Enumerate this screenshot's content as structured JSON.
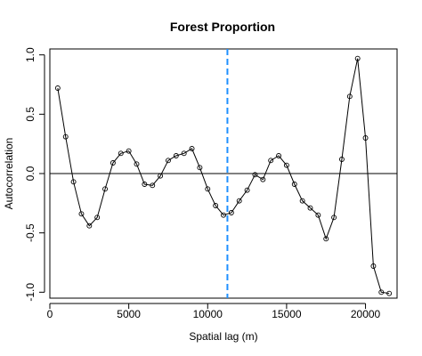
{
  "chart_data": {
    "type": "line",
    "title": "Forest Proportion",
    "xlabel": "Spatial lag (m)",
    "ylabel": "Autocorrelation",
    "xlim": [
      0,
      22000
    ],
    "ylim": [
      -1.05,
      1.05
    ],
    "x_ticks": [
      0,
      5000,
      10000,
      15000,
      20000
    ],
    "x_tick_labels": [
      "0",
      "5000",
      "10000",
      "15000",
      "20000"
    ],
    "y_ticks": [
      -1.0,
      -0.5,
      0.0,
      0.5,
      1.0
    ],
    "y_tick_labels": [
      "-1.0",
      "-0.5",
      "0.0",
      "0.5",
      "1.0"
    ],
    "reference_hline": 0,
    "reference_vline": 11250,
    "grid": false,
    "colors": {
      "line": "#000000",
      "marker": "#000000",
      "vline": "#1E90FF",
      "axis": "#000000"
    },
    "series": [
      {
        "points": [
          [
            500,
            0.72
          ],
          [
            1000,
            0.31
          ],
          [
            1500,
            -0.07
          ],
          [
            2000,
            -0.34
          ],
          [
            2500,
            -0.44
          ],
          [
            3000,
            -0.37
          ],
          [
            3500,
            -0.13
          ],
          [
            4000,
            0.09
          ],
          [
            4500,
            0.17
          ],
          [
            5000,
            0.19
          ],
          [
            5500,
            0.08
          ],
          [
            6000,
            -0.09
          ],
          [
            6500,
            -0.1
          ],
          [
            7000,
            -0.02
          ],
          [
            7500,
            0.11
          ],
          [
            8000,
            0.15
          ],
          [
            8500,
            0.17
          ],
          [
            9000,
            0.21
          ],
          [
            9500,
            0.05
          ],
          [
            10000,
            -0.13
          ],
          [
            10500,
            -0.27
          ],
          [
            11000,
            -0.35
          ],
          [
            11500,
            -0.33
          ],
          [
            12000,
            -0.23
          ],
          [
            12500,
            -0.14
          ],
          [
            13000,
            -0.01
          ],
          [
            13500,
            -0.05
          ],
          [
            14000,
            0.11
          ],
          [
            14500,
            0.15
          ],
          [
            15000,
            0.07
          ],
          [
            15500,
            -0.09
          ],
          [
            16000,
            -0.23
          ],
          [
            16500,
            -0.29
          ],
          [
            17000,
            -0.35
          ],
          [
            17500,
            -0.55
          ],
          [
            18000,
            -0.37
          ],
          [
            18500,
            0.12
          ],
          [
            19000,
            0.65
          ],
          [
            19500,
            0.97
          ],
          [
            20000,
            0.3
          ],
          [
            20500,
            -0.78
          ],
          [
            21000,
            -1.0
          ],
          [
            21500,
            -1.01
          ]
        ]
      }
    ]
  }
}
